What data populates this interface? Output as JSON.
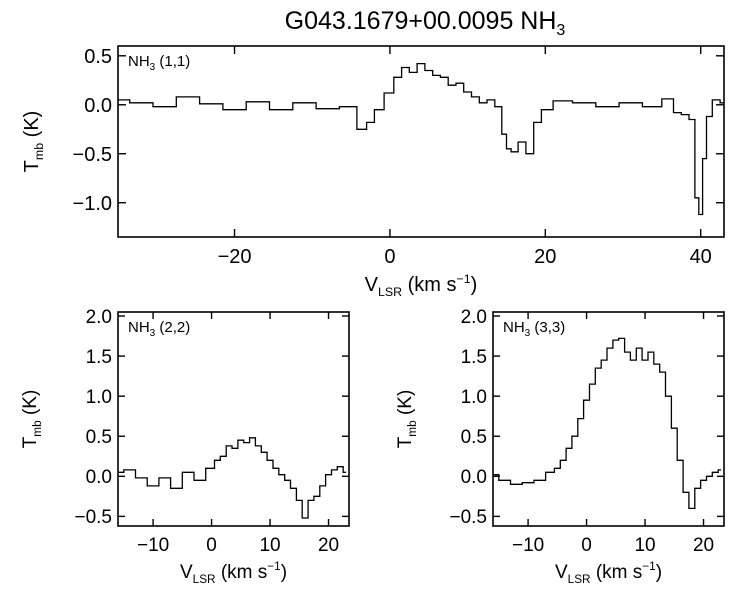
{
  "figure": {
    "title": "G043.1679+00.0095 NH",
    "title_sub": "3"
  },
  "chart_data": [
    {
      "id": "nh3_11",
      "type": "line",
      "step": true,
      "label_main": "NH",
      "label_sub": "3",
      "label_rest": " (1,1)",
      "xlabel": {
        "main": "V",
        "sub": "LSR",
        "rest": " (km s",
        "sup": "−1",
        "close": ")"
      },
      "ylabel": {
        "main": "T",
        "sub": "mb",
        "rest": " (K)"
      },
      "xlim": [
        -35,
        43
      ],
      "ylim": [
        -1.35,
        0.6
      ],
      "xticks": [
        -20,
        0,
        20,
        40
      ],
      "xtick_labels": [
        "−20",
        "0",
        "20",
        "40"
      ],
      "yticks": [
        -1.0,
        -0.5,
        0.0,
        0.5
      ],
      "ytick_labels": [
        "−1.0",
        "−0.5",
        "0.0",
        "0.5"
      ],
      "x": [
        -35,
        -32,
        -29,
        -26,
        -23,
        -20,
        -17,
        -14,
        -11,
        -8,
        -5,
        -3.5,
        -2.5,
        -1.5,
        0,
        1,
        2,
        3,
        4,
        5,
        6,
        7,
        8,
        9,
        10,
        11,
        12,
        13,
        14,
        14.8,
        15.2,
        16,
        17,
        18,
        19,
        20,
        22,
        25,
        28,
        31,
        34,
        36,
        37,
        38,
        39,
        39.5,
        40,
        40.5,
        41,
        42,
        43
      ],
      "y": [
        0.05,
        0.02,
        -0.02,
        0.08,
        0.01,
        -0.05,
        0.03,
        -0.05,
        0.02,
        -0.04,
        -0.02,
        -0.25,
        -0.18,
        -0.05,
        0.12,
        0.28,
        0.38,
        0.33,
        0.42,
        0.35,
        0.3,
        0.28,
        0.2,
        0.22,
        0.13,
        0.08,
        0.02,
        0.05,
        -0.02,
        -0.3,
        -0.45,
        -0.48,
        -0.38,
        -0.5,
        -0.18,
        -0.05,
        0.04,
        0.02,
        -0.02,
        0.02,
        -0.02,
        0.06,
        -0.08,
        -0.1,
        -0.15,
        -0.95,
        -1.12,
        -0.55,
        -0.12,
        0.05,
        0.02
      ]
    },
    {
      "id": "nh3_22",
      "type": "line",
      "step": true,
      "label_main": "NH",
      "label_sub": "3",
      "label_rest": " (2,2)",
      "xlabel": {
        "main": "V",
        "sub": "LSR",
        "rest": " (km s",
        "sup": "−1",
        "close": ")"
      },
      "ylabel": {
        "main": "T",
        "sub": "mb",
        "rest": " (K)"
      },
      "xlim": [
        -16,
        23.5
      ],
      "ylim": [
        -0.62,
        2.05
      ],
      "xticks": [
        -10,
        0,
        10,
        20
      ],
      "xtick_labels": [
        "−10",
        "0",
        "10",
        "20"
      ],
      "yticks": [
        -0.5,
        0.0,
        0.5,
        1.0,
        1.5,
        2.0
      ],
      "ytick_labels": [
        "−0.5",
        "0.0",
        "0.5",
        "1.0",
        "1.5",
        "2.0"
      ],
      "x": [
        -16,
        -14,
        -12,
        -10,
        -8,
        -6,
        -4,
        -2,
        0,
        1,
        2,
        3,
        4,
        5,
        6,
        7,
        8,
        9,
        10,
        11,
        12,
        13,
        14,
        15,
        16,
        17,
        18,
        19,
        20,
        21,
        22,
        23
      ],
      "y": [
        0.05,
        0.08,
        -0.02,
        -0.12,
        -0.02,
        -0.15,
        0.05,
        -0.05,
        0.1,
        0.2,
        0.25,
        0.38,
        0.35,
        0.45,
        0.42,
        0.48,
        0.38,
        0.3,
        0.2,
        0.1,
        0.02,
        -0.05,
        -0.15,
        -0.3,
        -0.52,
        -0.3,
        -0.25,
        -0.12,
        0.02,
        0.08,
        0.12,
        0.05
      ]
    },
    {
      "id": "nh3_33",
      "type": "line",
      "step": true,
      "label_main": "NH",
      "label_sub": "3",
      "label_rest": " (3,3)",
      "xlabel": {
        "main": "V",
        "sub": "LSR",
        "rest": " (km s",
        "sup": "−1",
        "close": ")"
      },
      "ylabel": {
        "main": "T",
        "sub": "mb",
        "rest": " (K)"
      },
      "xlim": [
        -16,
        23.5
      ],
      "ylim": [
        -0.62,
        2.05
      ],
      "xticks": [
        -10,
        0,
        10,
        20
      ],
      "xtick_labels": [
        "−10",
        "0",
        "10",
        "20"
      ],
      "yticks": [
        -0.5,
        0.0,
        0.5,
        1.0,
        1.5,
        2.0
      ],
      "ytick_labels": [
        "−0.5",
        "0.0",
        "0.5",
        "1.0",
        "1.5",
        "2.0"
      ],
      "x": [
        -16,
        -14,
        -12,
        -10,
        -8,
        -6,
        -5,
        -4,
        -3,
        -2,
        -1,
        0,
        1,
        2,
        3,
        4,
        5,
        6,
        7,
        8,
        9,
        10,
        11,
        12,
        13,
        14,
        15,
        16,
        17,
        18,
        19,
        20,
        21,
        22,
        23
      ],
      "y": [
        0.02,
        -0.05,
        -0.1,
        -0.08,
        -0.05,
        0.05,
        0.1,
        0.2,
        0.35,
        0.5,
        0.72,
        0.95,
        1.15,
        1.35,
        1.45,
        1.6,
        1.7,
        1.72,
        1.55,
        1.45,
        1.6,
        1.45,
        1.55,
        1.4,
        1.3,
        1.0,
        0.6,
        0.2,
        -0.2,
        -0.4,
        -0.15,
        -0.05,
        0.0,
        0.05,
        0.08
      ]
    }
  ]
}
